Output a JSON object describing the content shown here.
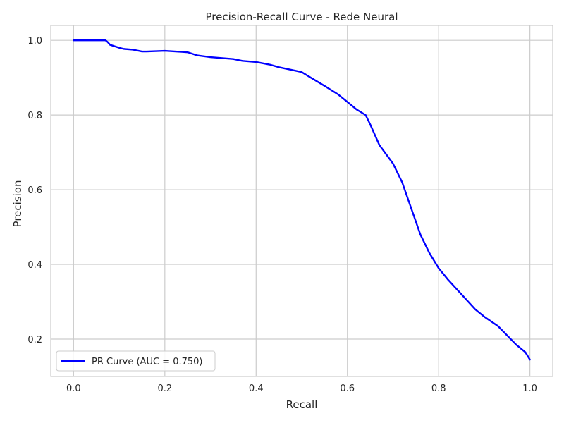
{
  "chart_data": {
    "type": "line",
    "title": "Precision-Recall Curve - Rede Neural",
    "xlabel": "Recall",
    "ylabel": "Precision",
    "xlim": [
      -0.05,
      1.05
    ],
    "ylim": [
      0.1,
      1.04
    ],
    "x_ticks": [
      0.0,
      0.2,
      0.4,
      0.6,
      0.8,
      1.0
    ],
    "x_tick_labels": [
      "0.0",
      "0.2",
      "0.4",
      "0.6",
      "0.8",
      "1.0"
    ],
    "y_ticks": [
      0.2,
      0.4,
      0.6,
      0.8,
      1.0
    ],
    "y_tick_labels": [
      "0.2",
      "0.4",
      "0.6",
      "0.8",
      "1.0"
    ],
    "grid": true,
    "legend_position": "lower-left",
    "series": [
      {
        "name": "PR Curve (AUC = 0.750)",
        "color": "#0000ff",
        "x": [
          0.0,
          0.02,
          0.05,
          0.07,
          0.075,
          0.08,
          0.1,
          0.11,
          0.13,
          0.15,
          0.16,
          0.2,
          0.25,
          0.27,
          0.3,
          0.35,
          0.37,
          0.4,
          0.43,
          0.45,
          0.5,
          0.52,
          0.55,
          0.58,
          0.6,
          0.62,
          0.64,
          0.65,
          0.67,
          0.7,
          0.72,
          0.74,
          0.76,
          0.78,
          0.8,
          0.82,
          0.85,
          0.88,
          0.9,
          0.93,
          0.95,
          0.97,
          0.99,
          1.0
        ],
        "y": [
          1.0,
          1.0,
          1.0,
          1.0,
          0.995,
          0.988,
          0.98,
          0.977,
          0.975,
          0.97,
          0.97,
          0.972,
          0.968,
          0.96,
          0.955,
          0.95,
          0.945,
          0.942,
          0.935,
          0.928,
          0.915,
          0.9,
          0.878,
          0.855,
          0.835,
          0.815,
          0.8,
          0.775,
          0.72,
          0.67,
          0.62,
          0.55,
          0.48,
          0.43,
          0.39,
          0.36,
          0.32,
          0.28,
          0.26,
          0.235,
          0.21,
          0.185,
          0.165,
          0.145
        ]
      }
    ]
  }
}
